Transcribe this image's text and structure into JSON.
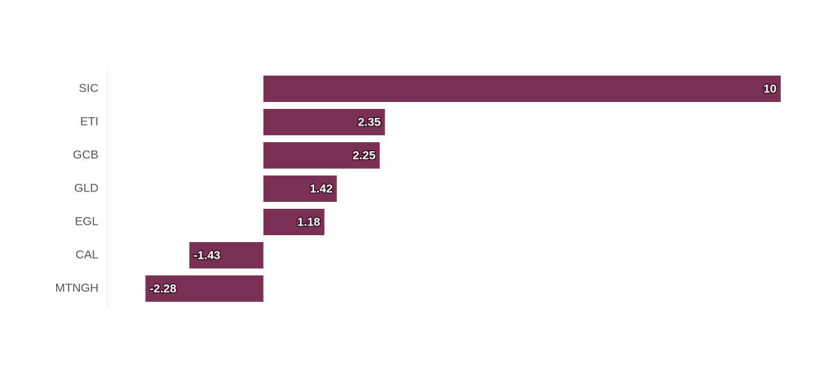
{
  "chart_data": {
    "type": "bar",
    "orientation": "horizontal",
    "categories": [
      "SIC",
      "ETI",
      "GCB",
      "GLD",
      "EGL",
      "CAL",
      "MTNGH"
    ],
    "values": [
      10,
      2.35,
      2.25,
      1.42,
      1.18,
      -1.43,
      -2.28
    ],
    "color": "#7b3155",
    "xlim": [
      -3,
      10
    ]
  }
}
